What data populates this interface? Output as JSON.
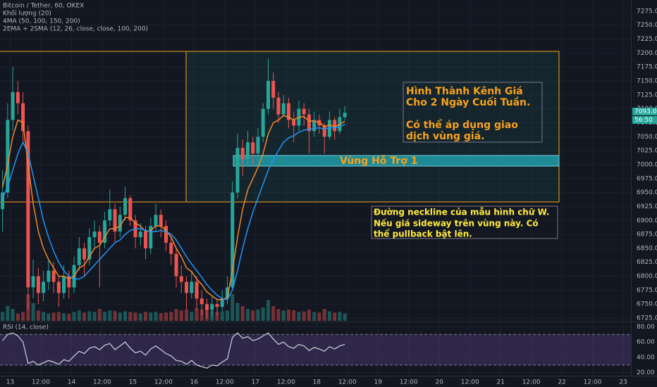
{
  "chart_data": [
    {
      "type": "candlestick",
      "title": "Bitcoin / Tether, 60, OKEX",
      "indicators": [
        "Khối lượng (20)",
        "4MA (50, 100, 150, 200)",
        "2EMA + 2SMA (12, 26, close, close, 100, 200)"
      ],
      "x": [
        -3,
        -1,
        1,
        3,
        5,
        7,
        9,
        11,
        13,
        15,
        17,
        19,
        21,
        23,
        25,
        27,
        29,
        31,
        33,
        35,
        37,
        39,
        41,
        43,
        45,
        47,
        49,
        51,
        53,
        55,
        57,
        59,
        61,
        63,
        65,
        67,
        69,
        71,
        73,
        75,
        77,
        79,
        81,
        83,
        85,
        87,
        89,
        91,
        93,
        95,
        97,
        99,
        101,
        103,
        105,
        107,
        109,
        111,
        113,
        115,
        117,
        119,
        121,
        123,
        125,
        127,
        129,
        131
      ],
      "ohlc": [
        [
          6920,
          6990,
          6880,
          6950
        ],
        [
          6950,
          7110,
          6940,
          7080
        ],
        [
          7080,
          7175,
          7060,
          7130
        ],
        [
          7130,
          7150,
          7090,
          7110
        ],
        [
          7110,
          7130,
          7040,
          7060
        ],
        [
          7060,
          7070,
          6740,
          6780
        ],
        [
          6780,
          6830,
          6760,
          6800
        ],
        [
          6800,
          6815,
          6750,
          6770
        ],
        [
          6770,
          6810,
          6755,
          6790
        ],
        [
          6790,
          6830,
          6775,
          6810
        ],
        [
          6810,
          6825,
          6770,
          6790
        ],
        [
          6790,
          6800,
          6745,
          6770
        ],
        [
          6770,
          6820,
          6760,
          6800
        ],
        [
          6800,
          6810,
          6760,
          6780
        ],
        [
          6780,
          6835,
          6770,
          6820
        ],
        [
          6820,
          6870,
          6810,
          6850
        ],
        [
          6850,
          6860,
          6800,
          6830
        ],
        [
          6830,
          6885,
          6820,
          6870
        ],
        [
          6870,
          6900,
          6850,
          6880
        ],
        [
          6880,
          6890,
          6780,
          6860
        ],
        [
          6860,
          6915,
          6850,
          6900
        ],
        [
          6900,
          6955,
          6890,
          6920
        ],
        [
          6920,
          6930,
          6860,
          6880
        ],
        [
          6880,
          6925,
          6870,
          6910
        ],
        [
          6910,
          6960,
          6900,
          6940
        ],
        [
          6940,
          6945,
          6890,
          6900
        ],
        [
          6900,
          6910,
          6850,
          6870
        ],
        [
          6870,
          6895,
          6855,
          6880
        ],
        [
          6880,
          6890,
          6830,
          6850
        ],
        [
          6850,
          6905,
          6840,
          6890
        ],
        [
          6890,
          6930,
          6880,
          6910
        ],
        [
          6910,
          6920,
          6870,
          6890
        ],
        [
          6890,
          6900,
          6845,
          6860
        ],
        [
          6860,
          6870,
          6820,
          6840
        ],
        [
          6840,
          6850,
          6780,
          6800
        ],
        [
          6800,
          6820,
          6770,
          6790
        ],
        [
          6790,
          6800,
          6740,
          6770
        ],
        [
          6770,
          6810,
          6760,
          6790
        ],
        [
          6790,
          6800,
          6740,
          6760
        ],
        [
          6760,
          6775,
          6730,
          6750
        ],
        [
          6750,
          6760,
          6725,
          6740
        ],
        [
          6740,
          6765,
          6728,
          6750
        ],
        [
          6750,
          6760,
          6730,
          6745
        ],
        [
          6745,
          6775,
          6738,
          6760
        ],
        [
          6760,
          6800,
          6750,
          6780
        ],
        [
          6780,
          6970,
          6775,
          6950
        ],
        [
          6950,
          7055,
          6940,
          7030
        ],
        [
          7030,
          7045,
          6980,
          7010
        ],
        [
          7010,
          7060,
          7000,
          7040
        ],
        [
          7040,
          7050,
          7000,
          7020
        ],
        [
          7020,
          7065,
          7010,
          7050
        ],
        [
          7050,
          7110,
          7040,
          7100
        ],
        [
          7100,
          7190,
          7090,
          7150
        ],
        [
          7150,
          7165,
          7100,
          7120
        ],
        [
          7120,
          7130,
          7075,
          7090
        ],
        [
          7090,
          7125,
          7085,
          7110
        ],
        [
          7110,
          7120,
          7065,
          7080
        ],
        [
          7080,
          7095,
          7040,
          7070
        ],
        [
          7070,
          7115,
          7060,
          7100
        ],
        [
          7100,
          7110,
          7070,
          7090
        ],
        [
          7090,
          7100,
          7020,
          7060
        ],
        [
          7060,
          7095,
          7050,
          7080
        ],
        [
          7080,
          7090,
          7055,
          7070
        ],
        [
          7070,
          7075,
          7020,
          7050
        ],
        [
          7050,
          7095,
          7045,
          7080
        ],
        [
          7080,
          7085,
          7045,
          7060
        ],
        [
          7060,
          7100,
          7055,
          7085
        ],
        [
          7085,
          7105,
          7080,
          7093
        ]
      ],
      "volume": [
        300,
        500,
        400,
        250,
        300,
        900,
        600,
        350,
        300,
        250,
        280,
        300,
        260,
        240,
        300,
        350,
        280,
        320,
        300,
        400,
        300,
        350,
        330,
        280,
        320,
        300,
        280,
        250,
        300,
        280,
        300,
        260,
        280,
        300,
        400,
        350,
        380,
        300,
        420,
        380,
        450,
        350,
        300,
        320,
        350,
        900,
        600,
        500,
        400,
        350,
        380,
        450,
        700,
        500,
        400,
        350,
        380,
        360,
        300,
        320,
        380,
        300,
        280,
        400,
        320,
        280,
        300,
        250
      ],
      "lines": [
        {
          "color": "#f0892b",
          "values": [
            6960,
            7000,
            7050,
            7080,
            7075,
            7000,
            6930,
            6880,
            6850,
            6830,
            6815,
            6800,
            6800,
            6795,
            6800,
            6815,
            6820,
            6835,
            6850,
            6855,
            6870,
            6885,
            6885,
            6890,
            6905,
            6905,
            6895,
            6890,
            6880,
            6882,
            6890,
            6890,
            6882,
            6870,
            6850,
            6835,
            6815,
            6808,
            6795,
            6785,
            6772,
            6765,
            6758,
            6758,
            6762,
            6810,
            6870,
            6920,
            6955,
            6975,
            6995,
            7020,
            7055,
            7075,
            7080,
            7088,
            7085,
            7080,
            7085,
            7086,
            7078,
            7078,
            7076,
            7068,
            7071,
            7068,
            7072,
            7078
          ]
        },
        {
          "color": "#2196f3",
          "values": [
            6940,
            6960,
            6990,
            7020,
            7040,
            7020,
            6980,
            6940,
            6900,
            6870,
            6845,
            6825,
            6810,
            6800,
            6795,
            6795,
            6800,
            6810,
            6820,
            6830,
            6840,
            6850,
            6860,
            6865,
            6875,
            6882,
            6885,
            6885,
            6882,
            6880,
            6880,
            6882,
            6880,
            6875,
            6865,
            6850,
            6835,
            6822,
            6810,
            6798,
            6785,
            6775,
            6766,
            6760,
            6758,
            6775,
            6810,
            6850,
            6885,
            6915,
            6940,
            6965,
            6990,
            7010,
            7025,
            7040,
            7048,
            7052,
            7058,
            7062,
            7063,
            7065,
            7066,
            7064,
            7066,
            7066,
            7068,
            7072
          ]
        }
      ],
      "up_color": "#26a69a",
      "down_color": "#ef5350",
      "xlim": [
        -4,
        243
      ],
      "xticks": [
        {
          "value": 0,
          "label": "13"
        },
        {
          "value": 12,
          "label": "12:00"
        },
        {
          "value": 24,
          "label": "14"
        },
        {
          "value": 36,
          "label": "12:00"
        },
        {
          "value": 48,
          "label": "15"
        },
        {
          "value": 60,
          "label": "12:00"
        },
        {
          "value": 72,
          "label": "16"
        },
        {
          "value": 84,
          "label": "12:00"
        },
        {
          "value": 96,
          "label": "17"
        },
        {
          "value": 108,
          "label": "12:00"
        },
        {
          "value": 120,
          "label": "18"
        },
        {
          "value": 132,
          "label": "12:00"
        },
        {
          "value": 144,
          "label": "19"
        },
        {
          "value": 156,
          "label": "12:00"
        },
        {
          "value": 168,
          "label": "20"
        },
        {
          "value": 180,
          "label": "12:00"
        },
        {
          "value": 192,
          "label": "21"
        },
        {
          "value": 204,
          "label": "12:00"
        },
        {
          "value": 216,
          "label": "22"
        },
        {
          "value": 228,
          "label": "12:00"
        },
        {
          "value": 240,
          "label": "23"
        }
      ],
      "ylim": [
        6720,
        7295
      ],
      "yticks": [
        {
          "value": 6725,
          "label": "6725.00"
        },
        {
          "value": 6750,
          "label": "6750.00"
        },
        {
          "value": 6775,
          "label": "6775.00"
        },
        {
          "value": 6800,
          "label": "6800.00"
        },
        {
          "value": 6825,
          "label": "6825.00"
        },
        {
          "value": 6850,
          "label": "6850.00"
        },
        {
          "value": 6875,
          "label": "6875.00"
        },
        {
          "value": 6900,
          "label": "6900.00"
        },
        {
          "value": 6925,
          "label": "6925.00"
        },
        {
          "value": 6950,
          "label": "6950.00"
        },
        {
          "value": 6975,
          "label": "6975.00"
        },
        {
          "value": 7000,
          "label": "7000.00"
        },
        {
          "value": 7025,
          "label": "7025.00"
        },
        {
          "value": 7050,
          "label": "7050.00"
        },
        {
          "value": 7075,
          "label": "7075.00"
        },
        {
          "value": 7100,
          "label": "7100.00"
        },
        {
          "value": 7125,
          "label": "7125.00"
        },
        {
          "value": 7150,
          "label": "7150.00"
        },
        {
          "value": 7175,
          "label": "7175.00"
        },
        {
          "value": 7200,
          "label": "7200.00"
        },
        {
          "value": 7225,
          "label": "7225.00"
        },
        {
          "value": 7250,
          "label": "7250.00"
        },
        {
          "value": 7275,
          "label": "7275.00"
        }
      ],
      "grid": true,
      "price_tag": "7093.00",
      "countdown": "56:50",
      "zone_label": "Vùng Hỗ Trợ 1",
      "annotations": [
        {
          "lines": [
            "Hình Thành Kênh Giá",
            "Cho 2 Ngày Cuối Tuần.",
            "Có thể áp dụng giao",
            "dịch vùng giá."
          ]
        },
        {
          "lines": [
            "Đường neckline của mẫu hình chữ W.",
            "Nếu giá sideway trên vùng này. Có",
            "thể pullback bật lên."
          ]
        }
      ]
    },
    {
      "type": "line",
      "title": "RSI (14, close)",
      "color": "#d1d4dc",
      "values": [
        62,
        70,
        72,
        68,
        60,
        32,
        35,
        30,
        33,
        36,
        34,
        31,
        37,
        35,
        42,
        48,
        45,
        52,
        54,
        50,
        56,
        58,
        50,
        55,
        60,
        52,
        46,
        48,
        43,
        51,
        55,
        50,
        45,
        42,
        36,
        35,
        31,
        36,
        30,
        28,
        26,
        30,
        29,
        34,
        38,
        66,
        72,
        65,
        67,
        62,
        64,
        68,
        72,
        64,
        57,
        60,
        54,
        52,
        57,
        55,
        49,
        53,
        51,
        48,
        54,
        51,
        55,
        57
      ],
      "band": [
        30,
        70
      ],
      "ylim": [
        17,
        84
      ],
      "yticks": [
        {
          "value": 20,
          "label": "20.00"
        },
        {
          "value": 40,
          "label": "40.00"
        },
        {
          "value": 60,
          "label": "60.00"
        },
        {
          "value": 80,
          "label": "80.00"
        }
      ]
    }
  ]
}
